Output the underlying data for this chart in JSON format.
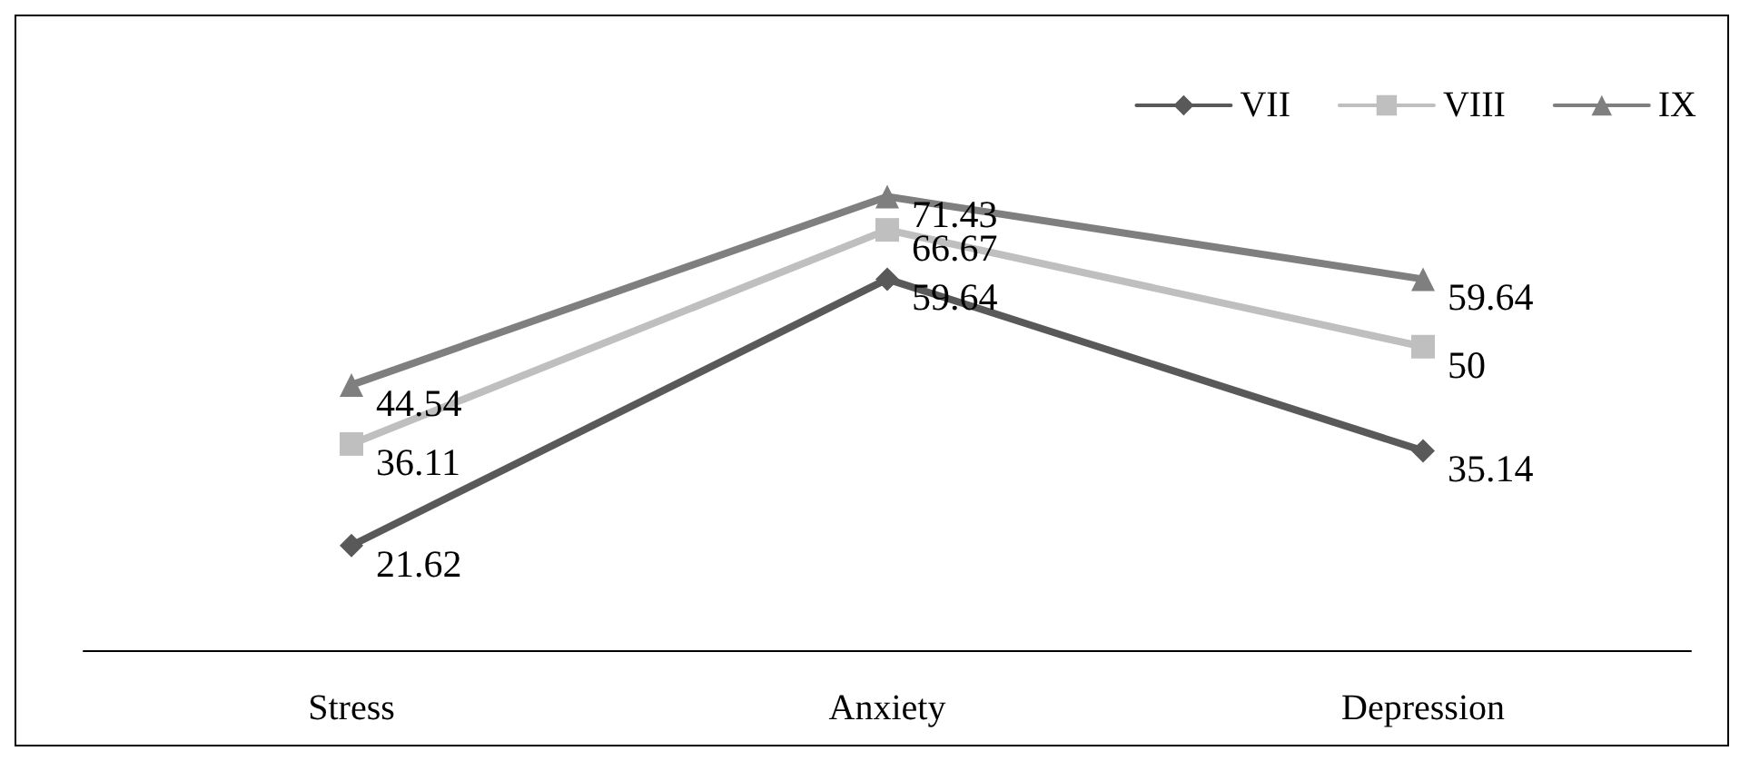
{
  "chart_data": {
    "type": "line",
    "categories": [
      "Stress",
      "Anxiety",
      "Depression"
    ],
    "series": [
      {
        "name": "VII",
        "color": "#595959",
        "marker": "diamond",
        "values": [
          21.62,
          59.64,
          35.14
        ]
      },
      {
        "name": "VIII",
        "color": "#bfbfbf",
        "marker": "square",
        "values": [
          36.11,
          66.67,
          50
        ]
      },
      {
        "name": "IX",
        "color": "#7f7f7f",
        "marker": "triangle",
        "values": [
          44.54,
          71.43,
          59.64
        ]
      }
    ],
    "data_labels": true,
    "legend": "top right",
    "grid": false
  }
}
